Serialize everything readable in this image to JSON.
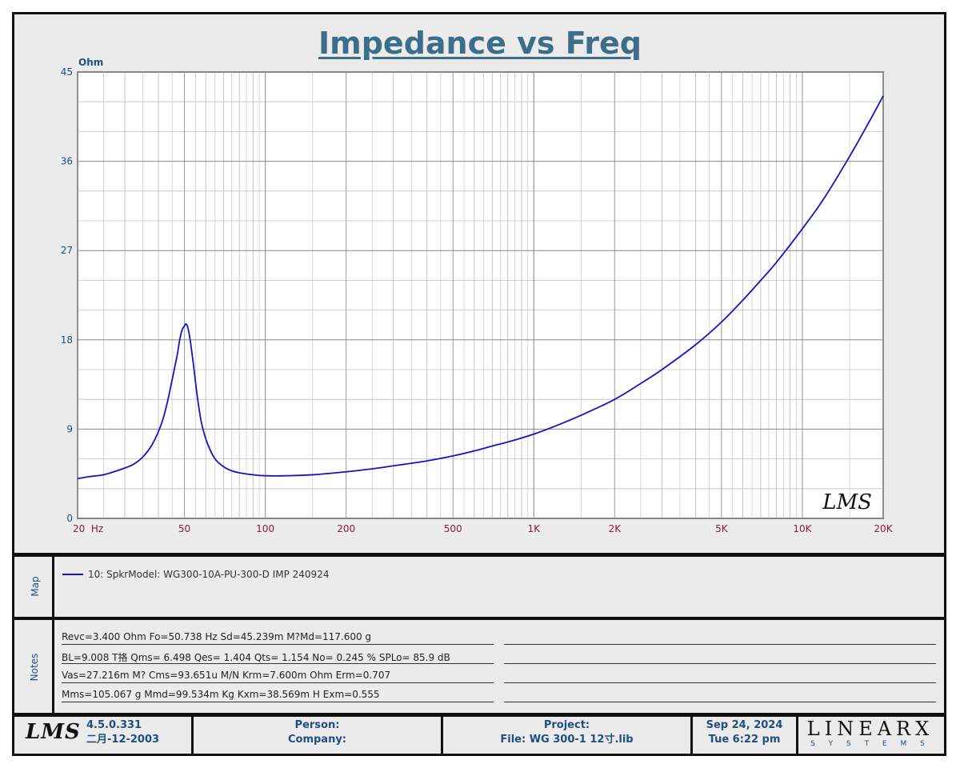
{
  "chart_data": {
    "type": "line",
    "title": "Impedance vs Freq",
    "ylabel": "Ohm",
    "xscale": "log",
    "xlim": [
      20,
      20000
    ],
    "ylim": [
      0,
      45
    ],
    "yticks": [
      "45",
      "36",
      "27",
      "18",
      "9",
      "0"
    ],
    "xticks": [
      "20  Hz",
      "50",
      "100",
      "200",
      "500",
      "1K",
      "2K",
      "5K",
      "10K",
      "20K"
    ],
    "grid": true,
    "series": [
      {
        "name": "10: SpkrModel: WG300-10A-PU-300-D IMP 240924",
        "color": "#1414c8",
        "x": [
          20,
          22,
          25,
          28,
          32,
          35,
          38,
          41,
          43,
          45,
          47,
          48,
          49,
          50,
          50.7,
          51.5,
          52.5,
          54,
          56,
          58,
          61,
          65,
          70,
          75,
          80,
          90,
          100,
          120,
          150,
          200,
          250,
          300,
          400,
          500,
          600,
          700,
          800,
          1000,
          1200,
          1500,
          2000,
          2500,
          3000,
          4000,
          5000,
          6000,
          7000,
          8000,
          10000,
          12000,
          15000,
          18000,
          20000
        ],
        "y": [
          4.0,
          4.2,
          4.4,
          4.8,
          5.4,
          6.2,
          7.5,
          9.5,
          11.5,
          14.0,
          16.5,
          18.0,
          19.0,
          19.4,
          19.6,
          19.2,
          18.0,
          15.5,
          12.0,
          9.5,
          7.5,
          6.0,
          5.2,
          4.8,
          4.6,
          4.4,
          4.3,
          4.3,
          4.4,
          4.7,
          5.0,
          5.3,
          5.8,
          6.3,
          6.8,
          7.3,
          7.7,
          8.5,
          9.3,
          10.4,
          12.0,
          13.6,
          15.0,
          17.5,
          19.8,
          22.0,
          24.0,
          25.8,
          29.2,
          32.2,
          36.5,
          40.3,
          42.6
        ]
      }
    ]
  },
  "map": {
    "label": "Map",
    "legend_entry": "10: SpkrModel: WG300-10A-PU-300-D IMP 240924"
  },
  "notes": {
    "label": "Notes",
    "lines": [
      "Revc=3.400 Ohm  Fo=50.738 Hz  Sd=45.239m M?Md=117.600 g",
      "BL=9.008 T挌  Qms= 6.498  Qes= 1.404  Qts= 1.154  No= 0.245 %  SPLo= 85.9 dB",
      "Vas=27.216m M? Cms=93.651u M/N  Krm=7.600m Ohm  Erm=0.707",
      "Mms=105.067 g  Mmd=99.534m Kg  Kxm=38.569m H  Exm=0.555"
    ]
  },
  "footer": {
    "lms_logo": "LMS",
    "version": "4.5.0.331",
    "version_date": "二月-12-2003",
    "person_label": "Person:",
    "company_label": "Company:",
    "project_label": "Project:",
    "file_label": "File: WG 300-1 12寸.lib",
    "date": "Sep 24, 2024",
    "time": "Tue  6:22 pm",
    "brand": "LINEARX",
    "brand_sub": "S Y S T E M S"
  },
  "watermark": "LMS",
  "colors": {
    "curve": "#1414c8",
    "title": "#3d6e89",
    "axis_text": "#1e4f80",
    "x_tick_text": "#8b1a3c"
  }
}
